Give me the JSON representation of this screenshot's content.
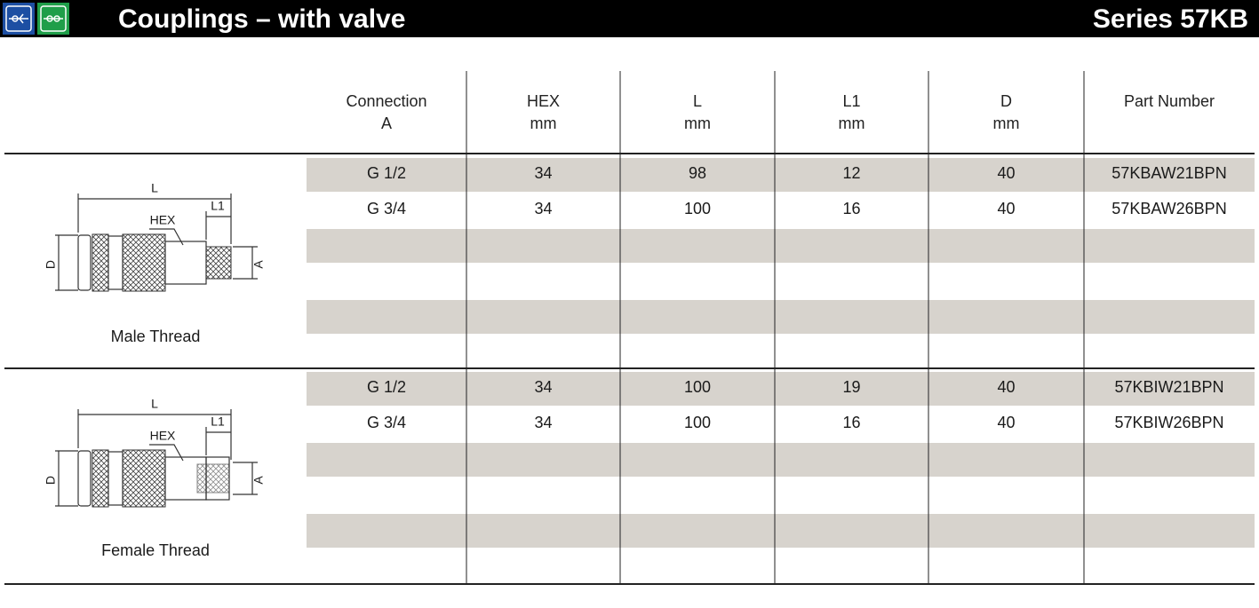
{
  "header": {
    "title": "Couplings – with valve",
    "series": "Series 57KB"
  },
  "table": {
    "columns": [
      [
        "Connection",
        "A"
      ],
      [
        "HEX",
        "mm"
      ],
      [
        "L",
        "mm"
      ],
      [
        "L1",
        "mm"
      ],
      [
        "D",
        "mm"
      ],
      [
        "Part Number"
      ]
    ],
    "sections": [
      {
        "label": "Male Thread",
        "diagram_labels": {
          "L": "L",
          "L1": "L1",
          "HEX": "HEX",
          "D": "D",
          "A": "A"
        },
        "rows": [
          [
            "G 1/2",
            "34",
            "98",
            "12",
            "40",
            "57KBAW21BPN"
          ],
          [
            "G 3/4",
            "34",
            "100",
            "16",
            "40",
            "57KBAW26BPN"
          ]
        ]
      },
      {
        "label": "Female Thread",
        "diagram_labels": {
          "L": "L",
          "L1": "L1",
          "HEX": "HEX",
          "D": "D",
          "A": "A"
        },
        "rows": [
          [
            "G 1/2",
            "34",
            "100",
            "19",
            "40",
            "57KBIW21BPN"
          ],
          [
            "G 3/4",
            "34",
            "100",
            "16",
            "40",
            "57KBIW26BPN"
          ]
        ]
      }
    ]
  }
}
